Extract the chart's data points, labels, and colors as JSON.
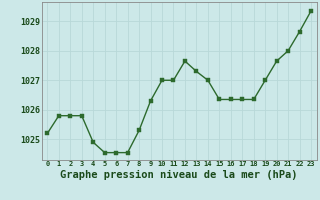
{
  "x": [
    0,
    1,
    2,
    3,
    4,
    5,
    6,
    7,
    8,
    9,
    10,
    11,
    12,
    13,
    14,
    15,
    16,
    17,
    18,
    19,
    20,
    21,
    22,
    23
  ],
  "y": [
    1025.2,
    1025.8,
    1025.8,
    1025.8,
    1024.9,
    1024.55,
    1024.55,
    1024.55,
    1025.3,
    1026.3,
    1027.0,
    1027.0,
    1027.65,
    1027.3,
    1027.0,
    1026.35,
    1026.35,
    1026.35,
    1026.35,
    1027.0,
    1027.65,
    1028.0,
    1028.65,
    1029.35
  ],
  "line_color": "#2d6a2d",
  "marker_color": "#2d6a2d",
  "bg_color": "#cce8e8",
  "grid_major_color": "#b8d8d8",
  "grid_minor_color": "#d8ecec",
  "title": "Graphe pression niveau de la mer (hPa)",
  "ylim_min": 1024.3,
  "ylim_max": 1029.65,
  "yticks": [
    1025,
    1026,
    1027,
    1028,
    1029
  ],
  "xticks": [
    0,
    1,
    2,
    3,
    4,
    5,
    6,
    7,
    8,
    9,
    10,
    11,
    12,
    13,
    14,
    15,
    16,
    17,
    18,
    19,
    20,
    21,
    22,
    23
  ],
  "tick_fontsize": 5.0,
  "ytick_fontsize": 6.0,
  "title_fontsize": 7.5,
  "marker_size": 2.5,
  "line_width": 1.0
}
